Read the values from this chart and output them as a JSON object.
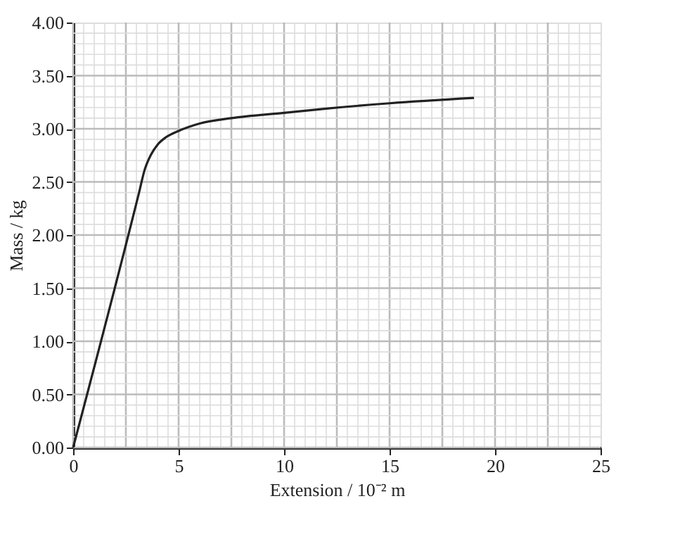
{
  "chart_data": {
    "type": "line",
    "xlabel": "Extension / 10⁻² m",
    "ylabel": "Mass / kg",
    "x": [
      0,
      3.1,
      3.4,
      3.7,
      4.0,
      4.4,
      5,
      6,
      7.5,
      10,
      12,
      15,
      19
    ],
    "series": [
      {
        "color": "#222222",
        "values": [
          0,
          2.38,
          2.62,
          2.76,
          2.85,
          2.92,
          2.98,
          3.05,
          3.1,
          3.15,
          3.19,
          3.24,
          3.29
        ]
      }
    ],
    "xlim": [
      0,
      25
    ],
    "ylim": [
      0,
      4
    ],
    "xticks": [
      0,
      5,
      10,
      15,
      20,
      25
    ],
    "yticks": [
      {
        "value": 0,
        "label": "0.00"
      },
      {
        "value": 0.5,
        "label": "0.50"
      },
      {
        "value": 1,
        "label": "1.00"
      },
      {
        "value": 1.5,
        "label": "1.50"
      },
      {
        "value": 2,
        "label": "2.00"
      },
      {
        "value": 2.5,
        "label": "2.50"
      },
      {
        "value": 3,
        "label": "3.00"
      },
      {
        "value": 3.5,
        "label": "3.50"
      },
      {
        "value": 4,
        "label": "4.00"
      }
    ],
    "grid": true,
    "marker": "none",
    "line_style": "solid"
  }
}
